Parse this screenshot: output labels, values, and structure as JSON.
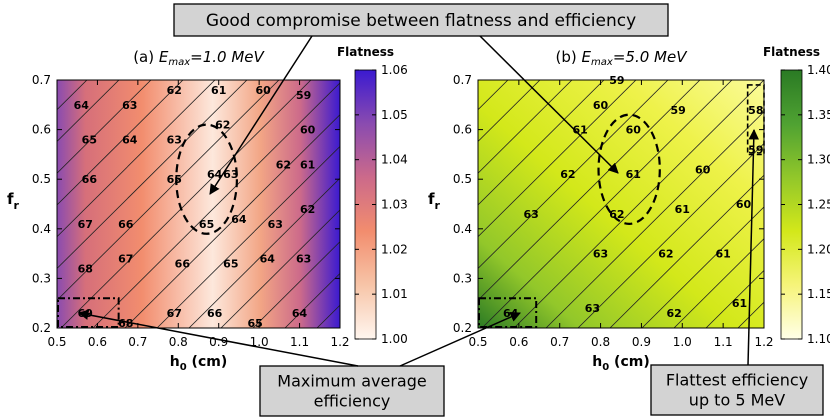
{
  "callouts": {
    "top": "Good compromise between flatness and efficiency",
    "bottom_left": [
      "Maximum average",
      "efficiency"
    ],
    "bottom_right": [
      "Flattest efficiency",
      "up to 5 MeV"
    ]
  },
  "chart_data": [
    {
      "type": "heatmap",
      "panel_label": "(a)",
      "title_prefix": "(a) ",
      "title_italic": "E",
      "title_sub": "max",
      "title_value": "=1.0 MeV",
      "xlabel_main": "h",
      "xlabel_sub": "0",
      "xlabel_unit": " (cm)",
      "ylabel_main": "f",
      "ylabel_sub": "r",
      "xlim": [
        0.5,
        1.2
      ],
      "ylim": [
        0.2,
        0.7
      ],
      "xticks": [
        "0.5",
        "0.6",
        "0.7",
        "0.8",
        "0.9",
        "1.0",
        "1.1",
        "1.2"
      ],
      "yticks": [
        "0.2",
        "0.3",
        "0.4",
        "0.5",
        "0.6",
        "0.7"
      ],
      "colorbar": {
        "label": "Flatness",
        "min": 1.0,
        "max": 1.06,
        "ticks": [
          "1.00",
          "1.01",
          "1.02",
          "1.03",
          "1.04",
          "1.05",
          "1.06"
        ],
        "colors": [
          "#fff6ef",
          "#f7c5a8",
          "#f28d6e",
          "#cc6a8a",
          "#8a4bb0",
          "#3b1ad0"
        ]
      },
      "contour_labels": [
        {
          "x": 0.56,
          "y": 0.65,
          "t": "64"
        },
        {
          "x": 0.68,
          "y": 0.65,
          "t": "63"
        },
        {
          "x": 0.79,
          "y": 0.68,
          "t": "62"
        },
        {
          "x": 0.9,
          "y": 0.68,
          "t": "61"
        },
        {
          "x": 1.01,
          "y": 0.68,
          "t": "60"
        },
        {
          "x": 1.11,
          "y": 0.67,
          "t": "59"
        },
        {
          "x": 0.58,
          "y": 0.58,
          "t": "65"
        },
        {
          "x": 0.68,
          "y": 0.58,
          "t": "64"
        },
        {
          "x": 0.79,
          "y": 0.58,
          "t": "63"
        },
        {
          "x": 0.91,
          "y": 0.61,
          "t": "62"
        },
        {
          "x": 1.12,
          "y": 0.6,
          "t": "60"
        },
        {
          "x": 0.58,
          "y": 0.5,
          "t": "66"
        },
        {
          "x": 0.79,
          "y": 0.5,
          "t": "65"
        },
        {
          "x": 0.89,
          "y": 0.51,
          "t": "64"
        },
        {
          "x": 0.93,
          "y": 0.51,
          "t": "63"
        },
        {
          "x": 1.06,
          "y": 0.53,
          "t": "62"
        },
        {
          "x": 1.12,
          "y": 0.53,
          "t": "61"
        },
        {
          "x": 0.57,
          "y": 0.41,
          "t": "67"
        },
        {
          "x": 0.67,
          "y": 0.41,
          "t": "66"
        },
        {
          "x": 0.87,
          "y": 0.41,
          "t": "65"
        },
        {
          "x": 0.95,
          "y": 0.42,
          "t": "64"
        },
        {
          "x": 1.04,
          "y": 0.41,
          "t": "63"
        },
        {
          "x": 1.12,
          "y": 0.44,
          "t": "62"
        },
        {
          "x": 0.57,
          "y": 0.32,
          "t": "68"
        },
        {
          "x": 0.67,
          "y": 0.34,
          "t": "67"
        },
        {
          "x": 0.81,
          "y": 0.33,
          "t": "66"
        },
        {
          "x": 0.93,
          "y": 0.33,
          "t": "65"
        },
        {
          "x": 1.02,
          "y": 0.34,
          "t": "64"
        },
        {
          "x": 1.11,
          "y": 0.34,
          "t": "63"
        },
        {
          "x": 0.57,
          "y": 0.23,
          "t": "69"
        },
        {
          "x": 0.67,
          "y": 0.21,
          "t": "68"
        },
        {
          "x": 0.79,
          "y": 0.23,
          "t": "67"
        },
        {
          "x": 0.89,
          "y": 0.23,
          "t": "66"
        },
        {
          "x": 0.99,
          "y": 0.21,
          "t": "65"
        },
        {
          "x": 1.1,
          "y": 0.23,
          "t": "64"
        }
      ],
      "circle": {
        "cx": 0.87,
        "cy": 0.5,
        "rx": 0.075,
        "ry": 0.11
      },
      "box": {
        "x0": 0.5,
        "x1": 0.65,
        "y0": 0.2,
        "y1": 0.26
      }
    },
    {
      "type": "heatmap",
      "panel_label": "(b)",
      "title_prefix": "(b) ",
      "title_italic": "E",
      "title_sub": "max",
      "title_value": "=5.0 MeV",
      "xlabel_main": "h",
      "xlabel_sub": "0",
      "xlabel_unit": " (cm)",
      "ylabel_main": "f",
      "ylabel_sub": "r",
      "xlim": [
        0.5,
        1.2
      ],
      "ylim": [
        0.2,
        0.7
      ],
      "xticks": [
        "0.5",
        "0.6",
        "0.7",
        "0.8",
        "0.9",
        "1.0",
        "1.1",
        "1.2"
      ],
      "yticks": [
        "0.2",
        "0.3",
        "0.4",
        "0.5",
        "0.6",
        "0.7"
      ],
      "colorbar": {
        "label": "Flatness",
        "min": 1.1,
        "max": 1.4,
        "ticks": [
          "1.10",
          "1.15",
          "1.20",
          "1.25",
          "1.30",
          "1.35",
          "1.40"
        ],
        "colors": [
          "#ffffe8",
          "#f6f47a",
          "#d3e81a",
          "#92c72a",
          "#4fa232",
          "#2a7a24"
        ]
      },
      "contour_labels": [
        {
          "x": 0.84,
          "y": 0.7,
          "t": "59"
        },
        {
          "x": 0.8,
          "y": 0.65,
          "t": "60"
        },
        {
          "x": 0.99,
          "y": 0.64,
          "t": "59"
        },
        {
          "x": 1.18,
          "y": 0.64,
          "t": "58"
        },
        {
          "x": 0.75,
          "y": 0.6,
          "t": "61"
        },
        {
          "x": 0.88,
          "y": 0.6,
          "t": "60"
        },
        {
          "x": 1.18,
          "y": 0.56,
          "t": "59"
        },
        {
          "x": 0.72,
          "y": 0.51,
          "t": "62"
        },
        {
          "x": 0.88,
          "y": 0.51,
          "t": "61"
        },
        {
          "x": 1.05,
          "y": 0.52,
          "t": "60"
        },
        {
          "x": 0.63,
          "y": 0.43,
          "t": "63"
        },
        {
          "x": 0.84,
          "y": 0.43,
          "t": "62"
        },
        {
          "x": 1.0,
          "y": 0.44,
          "t": "61"
        },
        {
          "x": 1.15,
          "y": 0.45,
          "t": "60"
        },
        {
          "x": 0.8,
          "y": 0.35,
          "t": "63"
        },
        {
          "x": 0.96,
          "y": 0.35,
          "t": "62"
        },
        {
          "x": 1.1,
          "y": 0.35,
          "t": "61"
        },
        {
          "x": 0.58,
          "y": 0.23,
          "t": "64"
        },
        {
          "x": 0.78,
          "y": 0.24,
          "t": "63"
        },
        {
          "x": 0.98,
          "y": 0.23,
          "t": "62"
        },
        {
          "x": 1.14,
          "y": 0.25,
          "t": "61"
        }
      ],
      "circle": {
        "cx": 0.87,
        "cy": 0.52,
        "rx": 0.075,
        "ry": 0.11
      },
      "box": {
        "x0": 0.5,
        "x1": 0.64,
        "y0": 0.2,
        "y1": 0.26
      },
      "box2": {
        "x0": 1.16,
        "x1": 1.2,
        "y0": 0.55,
        "y1": 0.69
      }
    }
  ]
}
